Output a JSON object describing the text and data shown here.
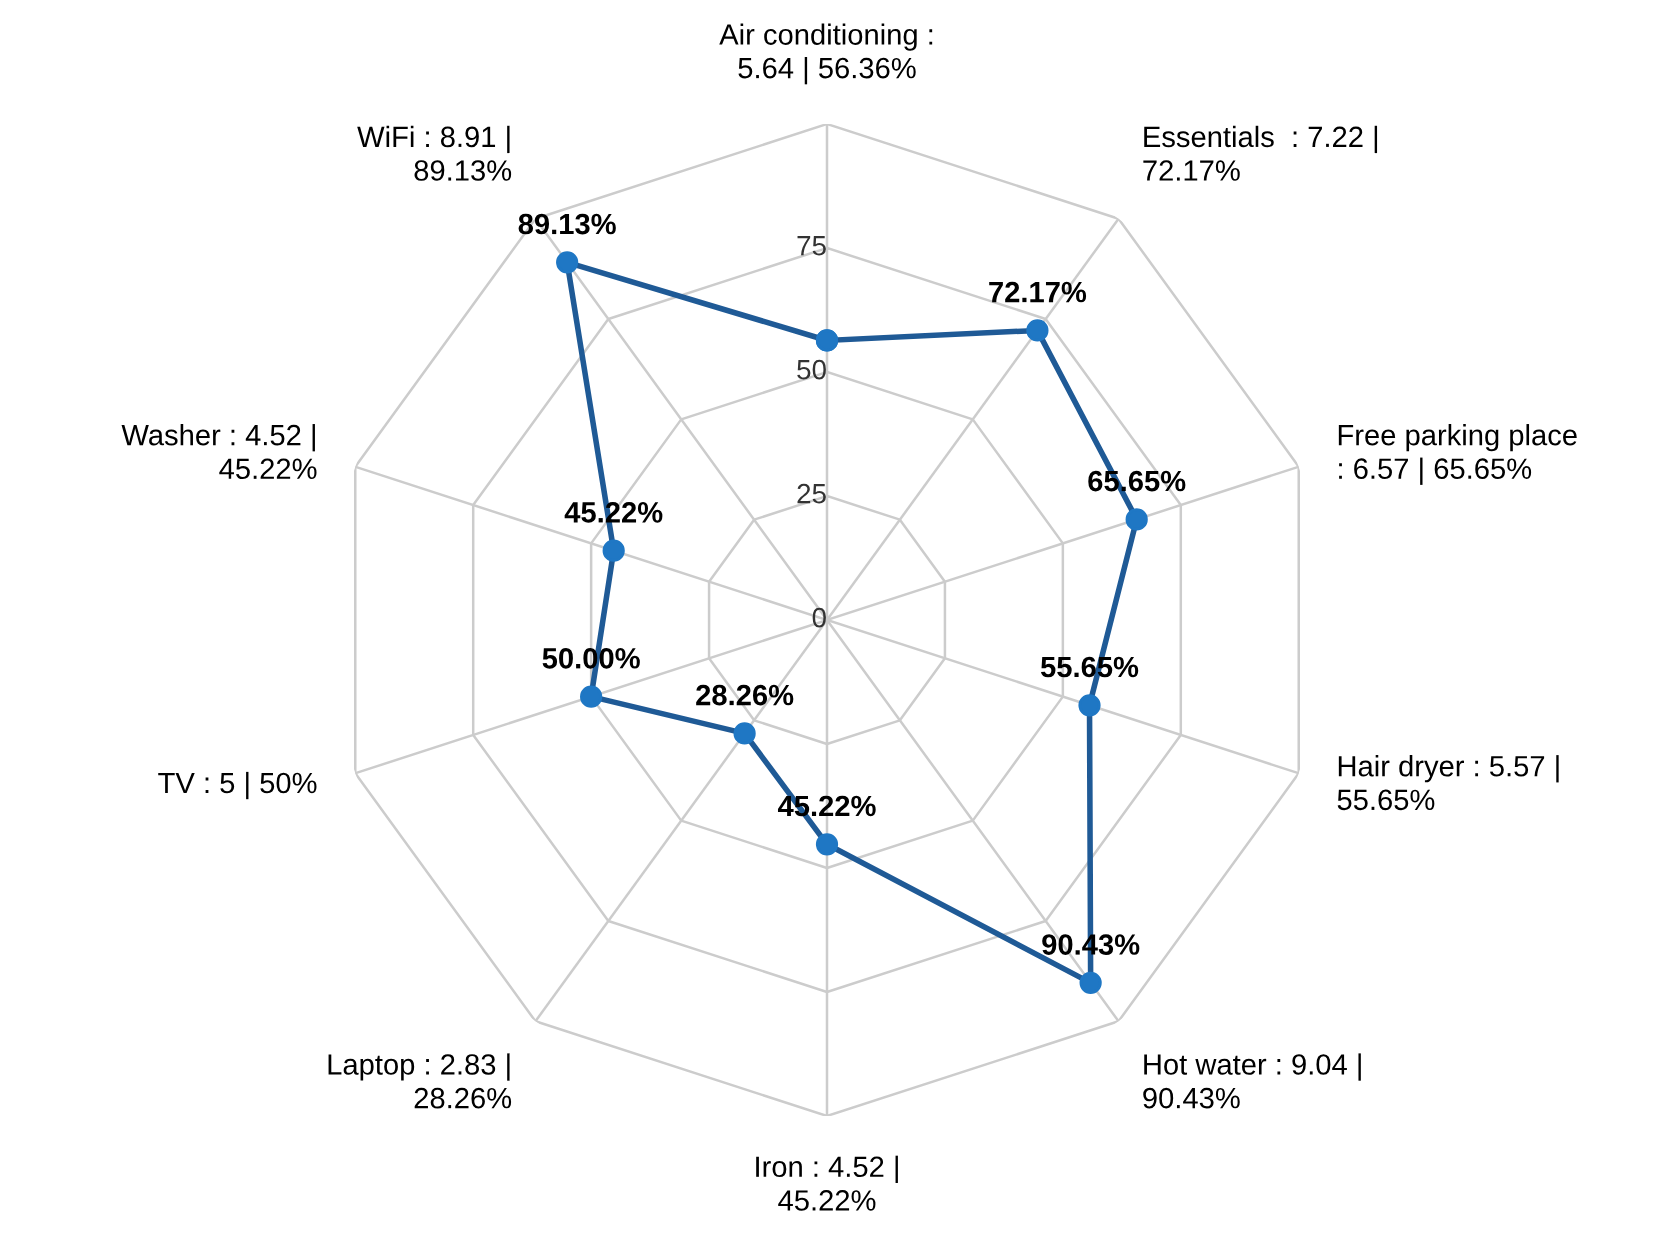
{
  "chart_data": {
    "type": "radar",
    "categories": [
      "Air conditioning :\n5.64 | 56.36%",
      "Essentials  : 7.22 |\n72.17%",
      "Free parking place\n: 6.57 | 65.65%",
      "Hair dryer : 5.57 |\n55.65%",
      "Hot water : 9.04 |\n90.43%",
      "Iron : 4.52 |\n45.22%",
      "Laptop : 2.83 |\n28.26%",
      "TV : 5 | 50%",
      "Washer : 4.52 |\n45.22%",
      "WiFi : 8.91 |\n89.13%"
    ],
    "series": [
      {
        "color": "#1f5a96",
        "values": [
          56.36,
          72.17,
          65.65,
          55.65,
          90.43,
          45.22,
          28.26,
          50.0,
          45.22,
          89.13
        ],
        "value_labels": [
          null,
          "72.17%",
          "65.65%",
          "55.65%",
          "90.43%",
          "45.22%",
          "28.26%",
          "50.00%",
          "45.22%",
          "89.13%"
        ]
      }
    ],
    "ylim": [
      0,
      100
    ],
    "yticks": [
      0,
      25,
      50,
      75
    ],
    "grid": true,
    "marker": "circle",
    "legend": false
  }
}
